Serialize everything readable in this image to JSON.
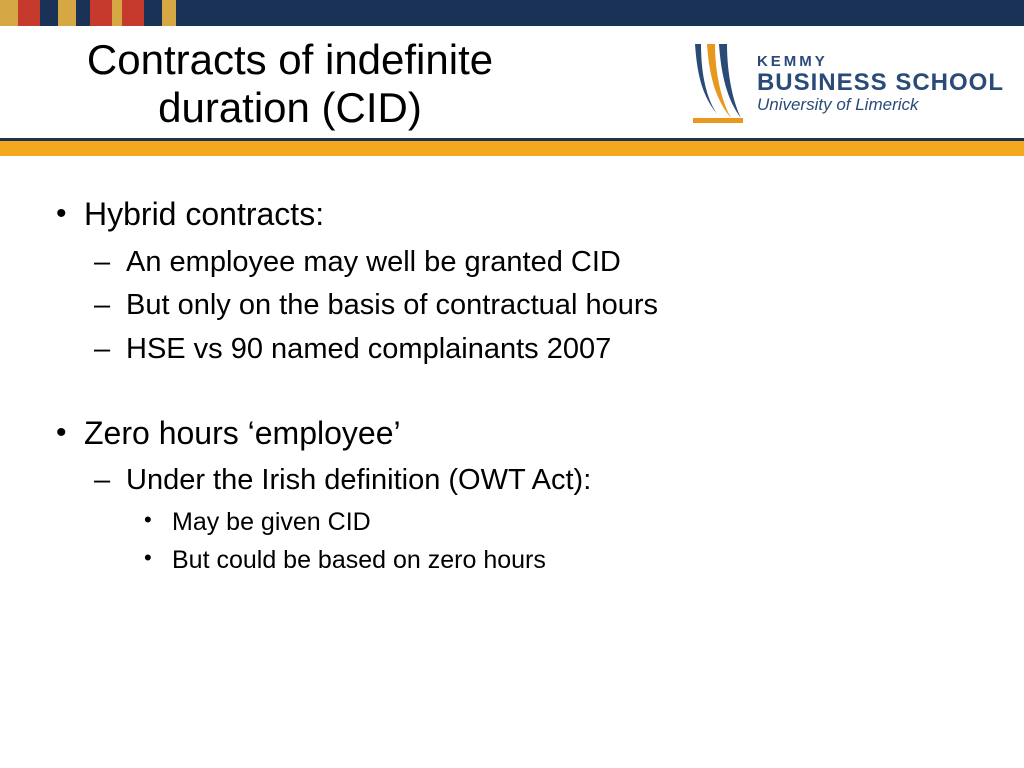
{
  "topbar": {
    "bg_color": "#1a3256",
    "stripes": [
      {
        "color": "#d6a843",
        "width": 18
      },
      {
        "color": "#c63a2e",
        "width": 22
      },
      {
        "color": "#1a3256",
        "width": 18
      },
      {
        "color": "#d6a843",
        "width": 18
      },
      {
        "color": "#1a3256",
        "width": 14
      },
      {
        "color": "#c63a2e",
        "width": 22
      },
      {
        "color": "#d6a843",
        "width": 10
      },
      {
        "color": "#c63a2e",
        "width": 22
      },
      {
        "color": "#1a3256",
        "width": 18
      },
      {
        "color": "#d6a843",
        "width": 14
      }
    ]
  },
  "title": {
    "line1": "Contracts of indefinite",
    "line2": "duration (CID)"
  },
  "logo": {
    "line1": "KEMMY",
    "line2": "BUSINESS SCHOOL",
    "line3": "University of Limerick",
    "mark_colors": {
      "navy": "#2a4a78",
      "orange": "#e8981e",
      "white": "#ffffff"
    }
  },
  "accent_bar": {
    "bg": "#f3a81f",
    "border_top": "#1a3256"
  },
  "bullets": [
    {
      "text": "Hybrid contracts:",
      "children": [
        {
          "text": "An employee may well be granted CID"
        },
        {
          "text": "But only on the basis of contractual hours"
        },
        {
          "text": "HSE vs 90 named complainants 2007"
        }
      ]
    },
    {
      "text": "Zero hours ‘employee’",
      "children": [
        {
          "text": "Under the Irish definition (OWT Act):",
          "children": [
            {
              "text": "May be given CID"
            },
            {
              "text": "But could be based on zero hours"
            }
          ]
        }
      ]
    }
  ]
}
